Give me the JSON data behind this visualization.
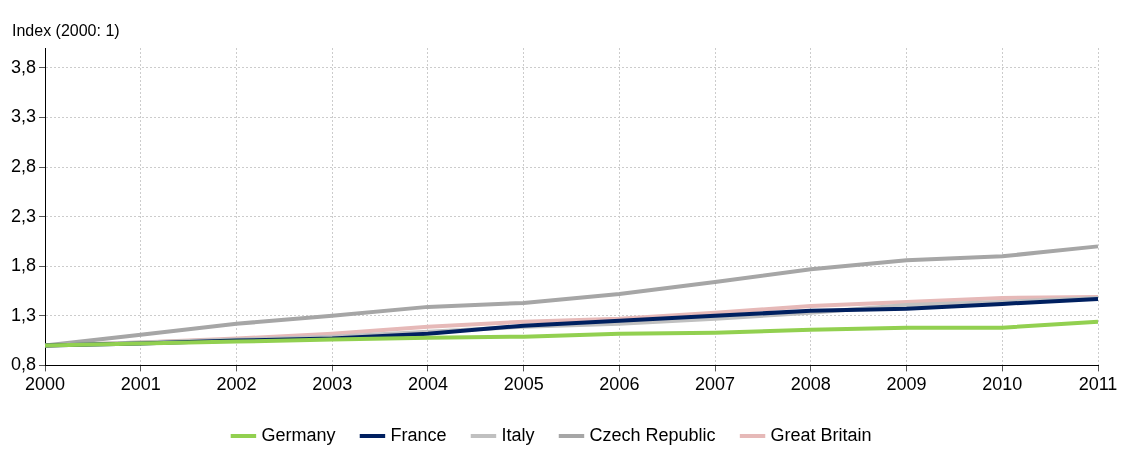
{
  "chart_data": {
    "type": "line",
    "ylabel": "Index (2000: 1)",
    "categories": [
      "2000",
      "2001",
      "2002",
      "2003",
      "2004",
      "2005",
      "2006",
      "2007",
      "2008",
      "2009",
      "2010",
      "2011"
    ],
    "series": [
      {
        "name": "Germany",
        "color": "#92d050",
        "values": [
          1.0,
          1.02,
          1.04,
          1.06,
          1.08,
          1.09,
          1.12,
          1.13,
          1.16,
          1.18,
          1.18,
          1.24
        ]
      },
      {
        "name": "France",
        "color": "#002060",
        "values": [
          1.0,
          1.02,
          1.05,
          1.07,
          1.12,
          1.2,
          1.25,
          1.3,
          1.35,
          1.37,
          1.42,
          1.47
        ]
      },
      {
        "name": "Italy",
        "color": "#c0c0c0",
        "values": [
          1.0,
          1.03,
          1.06,
          1.09,
          1.14,
          1.19,
          1.22,
          1.27,
          1.33,
          1.41,
          1.44,
          1.48
        ]
      },
      {
        "name": "Czech Republic",
        "color": "#a6a6a6",
        "values": [
          1.0,
          1.11,
          1.22,
          1.3,
          1.39,
          1.43,
          1.52,
          1.64,
          1.77,
          1.86,
          1.9,
          2.0
        ]
      },
      {
        "name": "Great Britain",
        "color": "#e6b9b8",
        "values": [
          1.0,
          1.03,
          1.07,
          1.12,
          1.19,
          1.24,
          1.27,
          1.33,
          1.4,
          1.44,
          1.48,
          1.49
        ]
      }
    ],
    "ylim": [
      0.8,
      4.0
    ],
    "yticks": [
      {
        "value": 0.8,
        "label": "0,8"
      },
      {
        "value": 1.3,
        "label": "1,3"
      },
      {
        "value": 1.8,
        "label": "1,8"
      },
      {
        "value": 2.3,
        "label": "2,3"
      },
      {
        "value": 2.8,
        "label": "2,8"
      },
      {
        "value": 3.3,
        "label": "3,3"
      },
      {
        "value": 3.8,
        "label": "3,8"
      }
    ],
    "grid": true,
    "legend": "bottom",
    "marker": "none",
    "line_style": "solid"
  }
}
